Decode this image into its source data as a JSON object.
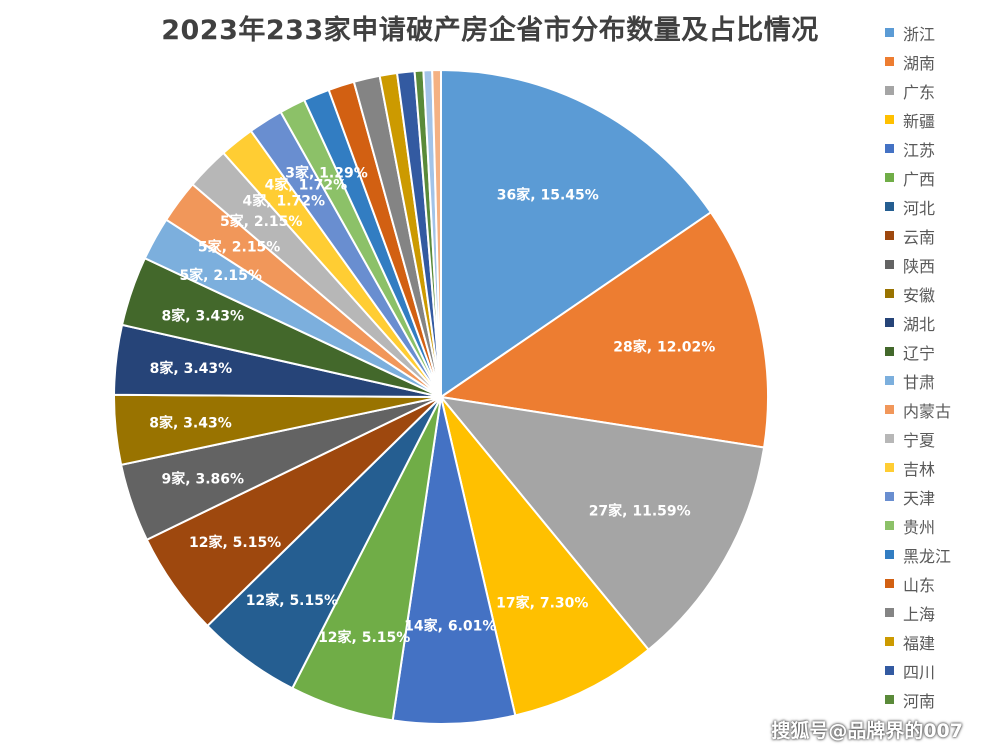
{
  "chart_data": {
    "type": "pie",
    "title": "2023年233家申请破产房企省市分布数量及占比情况",
    "total": 233,
    "slices": [
      {
        "name": "浙江",
        "label": "36家, 15.45%",
        "value": 36,
        "color": "#5b9bd5"
      },
      {
        "name": "湖南",
        "label": "28家, 12.02%",
        "value": 28,
        "color": "#ed7d31"
      },
      {
        "name": "广东",
        "label": "27家, 11.59%",
        "value": 27,
        "color": "#a5a5a5"
      },
      {
        "name": "新疆",
        "label": "17家, 7.30%",
        "value": 17,
        "color": "#ffc000"
      },
      {
        "name": "江苏",
        "label": "14家, 6.01%",
        "value": 14,
        "color": "#4472c4"
      },
      {
        "name": "广西",
        "label": "12家, 5.15%",
        "value": 12,
        "color": "#70ad47"
      },
      {
        "name": "河北",
        "label": "12家, 5.15%",
        "value": 12,
        "color": "#255e91"
      },
      {
        "name": "云南",
        "label": "12家, 5.15%",
        "value": 12,
        "color": "#9e480e"
      },
      {
        "name": "陕西",
        "label": "9家, 3.86%",
        "value": 9,
        "color": "#636363"
      },
      {
        "name": "安徽",
        "label": "8家, 3.43%",
        "value": 8,
        "color": "#997300"
      },
      {
        "name": "湖北",
        "label": "8家, 3.43%",
        "value": 8,
        "color": "#264478"
      },
      {
        "name": "辽宁",
        "label": "8家, 3.43%",
        "value": 8,
        "color": "#43682b"
      },
      {
        "name": "甘肃",
        "label": "5家, 2.15%",
        "value": 5,
        "color": "#7cafdd"
      },
      {
        "name": "内蒙古",
        "label": "5家, 2.15%",
        "value": 5,
        "color": "#f1975a"
      },
      {
        "name": "宁夏",
        "label": "5家, 2.15%",
        "value": 5,
        "color": "#b7b7b7"
      },
      {
        "name": "吉林",
        "label": "4家, 1.72%",
        "value": 4,
        "color": "#ffcd33"
      },
      {
        "name": "天津",
        "label": "4家, 1.72%",
        "value": 4,
        "color": "#698ed0"
      },
      {
        "name": "贵州",
        "label": "3家, 1.29%",
        "value": 3,
        "color": "#8cc168"
      },
      {
        "name": "黑龙江",
        "label": "",
        "value": 3,
        "color": "#327dc2"
      },
      {
        "name": "山东",
        "label": "",
        "value": 3,
        "color": "#d26012"
      },
      {
        "name": "上海",
        "label": "",
        "value": 3,
        "color": "#848484"
      },
      {
        "name": "福建",
        "label": "",
        "value": 2,
        "color": "#cc9a00"
      },
      {
        "name": "四川",
        "label": "",
        "value": 2,
        "color": "#335aa1"
      },
      {
        "name": "河南",
        "label": "",
        "value": 1,
        "color": "#5a8a39"
      },
      {
        "name": "",
        "label": "",
        "value": 1,
        "color": "#a2c3e8"
      },
      {
        "name": "",
        "label": "",
        "value": 1,
        "color": "#f4b183"
      }
    ]
  },
  "watermark": "搜狐号@品牌界的007"
}
